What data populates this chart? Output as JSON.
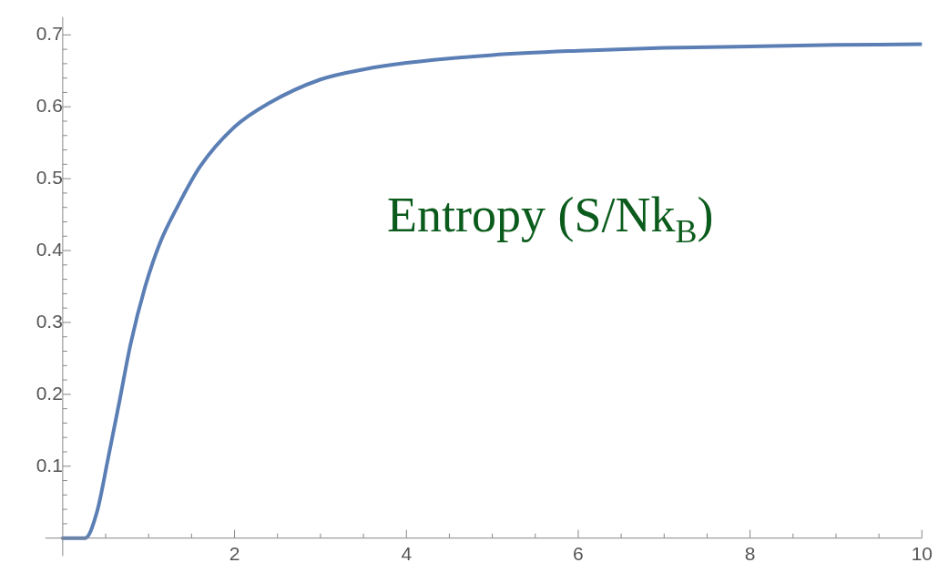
{
  "chart_data": {
    "type": "line",
    "x": [
      0,
      0.26,
      0.4,
      0.53,
      0.66,
      0.79,
      0.96,
      1.13,
      1.34,
      1.6,
      2.0,
      2.4,
      3.0,
      3.5,
      4.0,
      5.0,
      6.0,
      7.0,
      8.0,
      9.0,
      10.0
    ],
    "series": [
      {
        "color": "#5b7fb5",
        "values": [
          0,
          0,
          0.037,
          0.112,
          0.19,
          0.27,
          0.35,
          0.41,
          0.462,
          0.517,
          0.572,
          0.605,
          0.638,
          0.652,
          0.661,
          0.672,
          0.678,
          0.682,
          0.684,
          0.686,
          0.687
        ]
      }
    ],
    "xlim": [
      -0.2,
      10
    ],
    "ylim": [
      -0.025,
      0.725
    ],
    "xticks": [
      {
        "value": 0.5,
        "label": null
      },
      {
        "value": 1,
        "label": null
      },
      {
        "value": 1.5,
        "label": null
      },
      2,
      {
        "value": 2.5,
        "label": null
      },
      {
        "value": 3,
        "label": null
      },
      {
        "value": 3.5,
        "label": null
      },
      4,
      {
        "value": 4.5,
        "label": null
      },
      {
        "value": 5,
        "label": null
      },
      {
        "value": 5.5,
        "label": null
      },
      6,
      {
        "value": 6.5,
        "label": null
      },
      {
        "value": 7,
        "label": null
      },
      {
        "value": 7.5,
        "label": null
      },
      8,
      {
        "value": 8.5,
        "label": null
      },
      {
        "value": 9,
        "label": null
      },
      {
        "value": 9.5,
        "label": null
      },
      10
    ],
    "yticks": [
      {
        "value": 0.02,
        "label": null
      },
      {
        "value": 0.04,
        "label": null
      },
      {
        "value": 0.06,
        "label": null
      },
      {
        "value": 0.08,
        "label": null
      },
      0.1,
      {
        "value": 0.12,
        "label": null
      },
      {
        "value": 0.14,
        "label": null
      },
      {
        "value": 0.16,
        "label": null
      },
      {
        "value": 0.18,
        "label": null
      },
      0.2,
      {
        "value": 0.22,
        "label": null
      },
      {
        "value": 0.24,
        "label": null
      },
      {
        "value": 0.26,
        "label": null
      },
      {
        "value": 0.28,
        "label": null
      },
      0.3,
      {
        "value": 0.32,
        "label": null
      },
      {
        "value": 0.34,
        "label": null
      },
      {
        "value": 0.36,
        "label": null
      },
      {
        "value": 0.38,
        "label": null
      },
      0.4,
      {
        "value": 0.42,
        "label": null
      },
      {
        "value": 0.44,
        "label": null
      },
      {
        "value": 0.46,
        "label": null
      },
      {
        "value": 0.48,
        "label": null
      },
      0.5,
      {
        "value": 0.52,
        "label": null
      },
      {
        "value": 0.54,
        "label": null
      },
      {
        "value": 0.56,
        "label": null
      },
      {
        "value": 0.58,
        "label": null
      },
      0.6,
      {
        "value": 0.62,
        "label": null
      },
      {
        "value": 0.64,
        "label": null
      },
      {
        "value": 0.66,
        "label": null
      },
      {
        "value": 0.68,
        "label": null
      },
      0.7
    ],
    "grid": false,
    "marker": "none",
    "line_style": "solid",
    "annotations": [
      "Entropy (S/Nk$_{B}$)"
    ]
  }
}
